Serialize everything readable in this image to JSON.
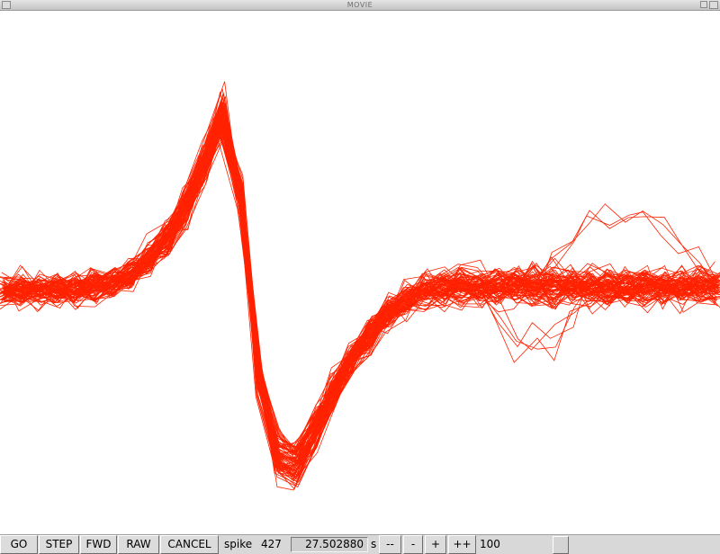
{
  "window": {
    "title": "MOVIE"
  },
  "controls": {
    "go": "GO",
    "step": "STEP",
    "fwd": "FWD",
    "raw": "RAW",
    "cancel": "CANCEL",
    "spike_label": "spike",
    "spike_number": "427",
    "time_value": "27.502880",
    "time_unit": "s",
    "dec_large": "--",
    "dec_small": "-",
    "inc_small": "+",
    "inc_large": "++",
    "speed_value": "100"
  },
  "colors": {
    "trace": "#ff2200",
    "background": "#ffffff",
    "panel": "#d8d8d8"
  },
  "chart_data": {
    "type": "line",
    "title": "",
    "xlabel": "",
    "ylabel": "",
    "grid": false,
    "description_of_series": "overlaid spike waveforms",
    "trace_count": 90,
    "x": [
      0,
      1,
      2,
      3,
      4,
      5,
      6,
      7,
      8,
      9,
      10,
      11,
      12,
      13,
      14,
      15,
      16,
      17,
      18,
      19,
      20,
      21,
      22,
      23,
      24,
      25,
      26,
      27,
      28,
      29,
      30,
      31,
      32,
      33,
      34,
      35,
      36,
      37,
      38,
      39
    ],
    "mean_waveform": [
      0,
      0,
      0,
      0,
      0,
      0.02,
      0.05,
      0.1,
      0.18,
      0.3,
      0.48,
      0.72,
      1.0,
      0.55,
      -0.5,
      -0.95,
      -1.0,
      -0.82,
      -0.6,
      -0.4,
      -0.25,
      -0.13,
      -0.05,
      0,
      0.02,
      0.03,
      0.03,
      0.03,
      0.03,
      0.03,
      0.03,
      0.03,
      0.03,
      0.02,
      0.02,
      0.02,
      0.02,
      0.02,
      0.02,
      0.02
    ],
    "ylim": [
      -1.4,
      1.6
    ]
  }
}
